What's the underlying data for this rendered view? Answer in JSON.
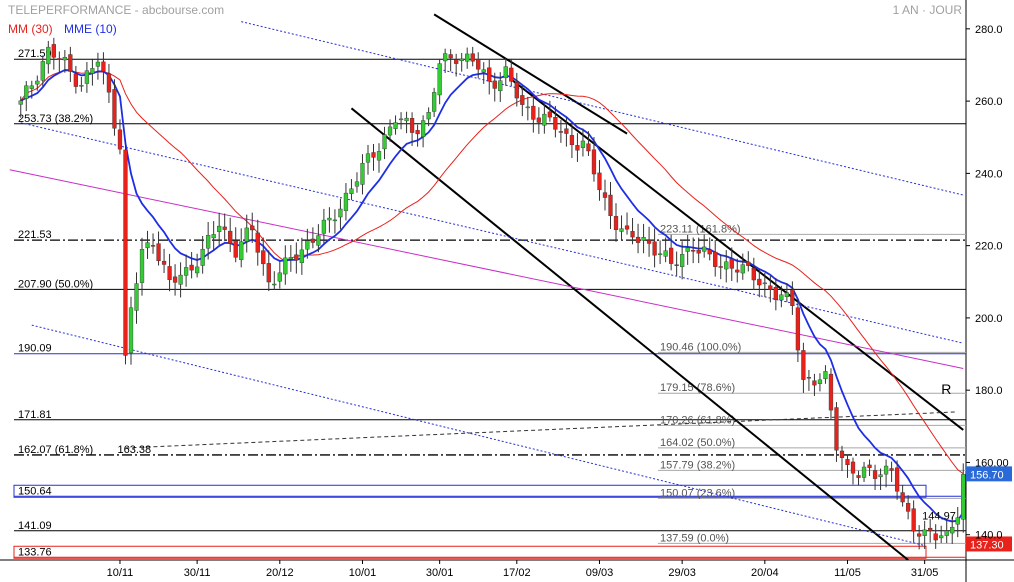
{
  "header": {
    "source": "TELEPERFORMANCE - abcbourse.com",
    "period": "1 AN · JOUR",
    "ma_slow": "MM (30)",
    "ma_fast": "MME (10)"
  },
  "colors": {
    "up": "#33cc33",
    "down": "#e8211b",
    "ma_slow": "#e8211b",
    "ma_fast": "#1e2ee6",
    "channel": "#2430d8",
    "trendline": "#c82ec8",
    "fib_line": "#a8a8a8",
    "level_line": "#000000",
    "price_tag": "#2a6ad8",
    "support_tag": "#e8211b"
  },
  "chart_data": {
    "type": "candlestick",
    "ylim": [
      133,
      283
    ],
    "y_ticks": [
      "280.0",
      "260.0",
      "240.0",
      "220.0",
      "200.0",
      "180.0",
      "160.00",
      "140.0"
    ],
    "y_tick_values": [
      280,
      260,
      240,
      220,
      200,
      180,
      160,
      140
    ],
    "x_ticks": [
      {
        "label": "10/11",
        "i": 18
      },
      {
        "label": "30/11",
        "i": 32
      },
      {
        "label": "20/12",
        "i": 47
      },
      {
        "label": "10/01",
        "i": 62
      },
      {
        "label": "30/01",
        "i": 76
      },
      {
        "label": "17/02",
        "i": 90
      },
      {
        "label": "09/03",
        "i": 105
      },
      {
        "label": "29/03",
        "i": 120
      },
      {
        "label": "20/04",
        "i": 135
      },
      {
        "label": "11/05",
        "i": 150
      },
      {
        "label": "31/05",
        "i": 164
      }
    ],
    "candles_n": 172,
    "price_anchors": [
      [
        0,
        259
      ],
      [
        3,
        268
      ],
      [
        5,
        274
      ],
      [
        8,
        270
      ],
      [
        11,
        265
      ],
      [
        14,
        271
      ],
      [
        16,
        262
      ],
      [
        18,
        248
      ],
      [
        19,
        188
      ],
      [
        20,
        202
      ],
      [
        22,
        218
      ],
      [
        24,
        222
      ],
      [
        27,
        209
      ],
      [
        30,
        213
      ],
      [
        33,
        218
      ],
      [
        36,
        226
      ],
      [
        39,
        219
      ],
      [
        42,
        224
      ],
      [
        45,
        210
      ],
      [
        48,
        214
      ],
      [
        52,
        221
      ],
      [
        56,
        226
      ],
      [
        59,
        234
      ],
      [
        62,
        241
      ],
      [
        65,
        248
      ],
      [
        68,
        255
      ],
      [
        71,
        252
      ],
      [
        74,
        256
      ],
      [
        76,
        270
      ],
      [
        79,
        273
      ],
      [
        82,
        271
      ],
      [
        85,
        265
      ],
      [
        88,
        268
      ],
      [
        91,
        258
      ],
      [
        93,
        257
      ],
      [
        96,
        254
      ],
      [
        99,
        250
      ],
      [
        102,
        248
      ],
      [
        105,
        236
      ],
      [
        107,
        229
      ],
      [
        110,
        222
      ],
      [
        113,
        222
      ],
      [
        116,
        218
      ],
      [
        118,
        214
      ],
      [
        120,
        218
      ],
      [
        122,
        220
      ],
      [
        125,
        216
      ],
      [
        128,
        215
      ],
      [
        131,
        213
      ],
      [
        134,
        211
      ],
      [
        137,
        206
      ],
      [
        140,
        204
      ],
      [
        142,
        183
      ],
      [
        144,
        182
      ],
      [
        146,
        183
      ],
      [
        148,
        166
      ],
      [
        150,
        158
      ],
      [
        152,
        156
      ],
      [
        154,
        158
      ],
      [
        156,
        158
      ],
      [
        158,
        157
      ],
      [
        160,
        148
      ],
      [
        162,
        143
      ],
      [
        164,
        140
      ],
      [
        166,
        139
      ],
      [
        168,
        140
      ],
      [
        170,
        147
      ],
      [
        171,
        156.7
      ]
    ],
    "series": [
      {
        "name": "MM (30)",
        "kind": "sma",
        "period": 30
      },
      {
        "name": "MME (10)",
        "kind": "ema",
        "period": 10
      }
    ],
    "horizontal_levels": [
      {
        "label": "271.59",
        "value": 271.59,
        "style": "solid",
        "color": "level"
      },
      {
        "label": "253.73  (38.2%)",
        "value": 253.73,
        "style": "solid",
        "color": "level"
      },
      {
        "label": "221.53",
        "value": 221.53,
        "style": "dashdot",
        "color": "level"
      },
      {
        "label": "207.90  (50.0%)",
        "value": 207.9,
        "style": "solid",
        "color": "level"
      },
      {
        "label": "190.09",
        "value": 190.09,
        "style": "solid",
        "color": "blue"
      },
      {
        "label": "171.81",
        "value": 171.81,
        "style": "solid",
        "color": "level"
      },
      {
        "label": "162.07  (61.8%)",
        "value": 162.07,
        "style": "dashdot",
        "color": "level"
      },
      {
        "label": "150.64",
        "value": 150.64,
        "style": "solid",
        "color": "blue",
        "boxed": true
      },
      {
        "label": "141.09",
        "value": 141.09,
        "style": "solid",
        "color": "level"
      },
      {
        "label": "133.76",
        "value": 133.76,
        "style": "solid",
        "color": "red",
        "boxed": true
      }
    ],
    "fibonacci": [
      {
        "label": "223.11  (161.8%)",
        "value": 223.11
      },
      {
        "label": "190.46  (100.0%)",
        "value": 190.46
      },
      {
        "label": "179.15  (78.6%)",
        "value": 179.15
      },
      {
        "label": "170.26  (61.8%)",
        "value": 170.26
      },
      {
        "label": "164.02  (50.0%)",
        "value": 164.02
      },
      {
        "label": "157.79  (38.2%)",
        "value": 157.79
      },
      {
        "label": "150.07  (23.6%)",
        "value": 150.07
      },
      {
        "label": "137.59  (0.0%)",
        "value": 137.59
      }
    ],
    "point_labels": [
      {
        "label": "163.38",
        "i": 19,
        "value": 163.38
      },
      {
        "label": "144.97",
        "i": 165,
        "value": 144.97
      }
    ],
    "trendlines": [
      {
        "kind": "thick",
        "from": [
          89,
          266
        ],
        "to": [
          171,
          169
        ]
      },
      {
        "kind": "thick",
        "from": [
          60,
          258
        ],
        "to": [
          161,
          133
        ]
      },
      {
        "kind": "thick",
        "from": [
          75,
          284
        ],
        "to": [
          110,
          251
        ]
      },
      {
        "kind": "channel-dotted",
        "from": [
          40,
          282
        ],
        "to": [
          171,
          234
        ]
      },
      {
        "kind": "channel-dotted",
        "from": [
          0,
          254
        ],
        "to": [
          171,
          193
        ]
      },
      {
        "kind": "channel-dotted",
        "from": [
          2,
          198
        ],
        "to": [
          164,
          137
        ]
      },
      {
        "kind": "magenta",
        "from": [
          -2,
          241
        ],
        "to": [
          171,
          186
        ]
      },
      {
        "kind": "dashed-thin",
        "from": [
          19,
          164
        ],
        "to": [
          170,
          174
        ]
      }
    ],
    "marker_R": {
      "text": "R",
      "i": 167,
      "value": 179
    },
    "last_price": {
      "text": "156.70",
      "value": 156.7
    },
    "support_price": {
      "text": "137.30",
      "value": 137.3
    }
  }
}
